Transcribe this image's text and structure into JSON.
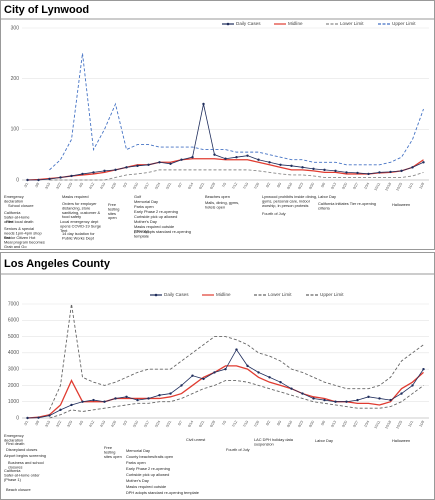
{
  "chart_data": [
    {
      "type": "line",
      "title": "City of Lynwood",
      "categories": [
        "3/1",
        "3/8",
        "3/15",
        "3/22",
        "3/29",
        "4/5",
        "4/12",
        "4/19",
        "4/26",
        "5/3",
        "5/10",
        "5/17",
        "5/24",
        "5/31",
        "6/7",
        "6/14",
        "6/21",
        "6/28",
        "7/5",
        "7/12",
        "7/19",
        "7/26",
        "8/2",
        "8/9",
        "8/16",
        "8/23",
        "8/30",
        "9/6",
        "9/13",
        "9/20",
        "9/27",
        "10/4",
        "10/11",
        "10/18",
        "10/25",
        "11/1",
        "11/8"
      ],
      "ylim": [
        0,
        300
      ],
      "yticks": [
        0,
        100,
        200,
        300
      ],
      "grid": true,
      "series": [
        {
          "name": "Daily Cases",
          "color": "#1f2d5c",
          "dash": "solid",
          "markers": true,
          "values": [
            0,
            0,
            2,
            5,
            8,
            12,
            15,
            18,
            20,
            25,
            28,
            30,
            35,
            32,
            40,
            45,
            150,
            50,
            42,
            45,
            48,
            40,
            35,
            30,
            28,
            25,
            22,
            20,
            18,
            15,
            14,
            12,
            15,
            16,
            18,
            25,
            35
          ]
        },
        {
          "name": "Midline",
          "color": "#e03c31",
          "dash": "solid",
          "markers": false,
          "values": [
            0,
            1,
            3,
            5,
            8,
            10,
            12,
            15,
            20,
            25,
            30,
            30,
            35,
            35,
            40,
            42,
            42,
            42,
            40,
            40,
            40,
            35,
            30,
            25,
            20,
            20,
            18,
            15,
            15,
            12,
            12,
            12,
            14,
            15,
            18,
            25,
            40
          ]
        },
        {
          "name": "Lower Limit",
          "color": "#8a8a8a",
          "dash": "dashed",
          "markers": false,
          "values": [
            null,
            null,
            0,
            0,
            0,
            0,
            0,
            0,
            5,
            10,
            12,
            15,
            20,
            20,
            20,
            20,
            20,
            20,
            20,
            20,
            20,
            18,
            15,
            12,
            10,
            10,
            8,
            5,
            5,
            5,
            5,
            5,
            5,
            5,
            5,
            8,
            15
          ]
        },
        {
          "name": "Upper Limit",
          "color": "#4472c4",
          "dash": "dashed",
          "markers": false,
          "values": [
            null,
            null,
            20,
            40,
            80,
            250,
            60,
            100,
            150,
            60,
            70,
            70,
            65,
            65,
            65,
            65,
            60,
            60,
            60,
            55,
            55,
            55,
            50,
            45,
            40,
            40,
            35,
            35,
            35,
            30,
            30,
            30,
            30,
            35,
            45,
            80,
            140
          ]
        }
      ],
      "annotations": [
        "Emergency declaration",
        "School closure",
        "California Safer-at-Home order",
        "First local death",
        "Seniors & special needs 1pm-4pm shop first",
        "Senior Citizen Hot Meal program becomes Grab and Go",
        "Masks required",
        "Orders for employer distancing, store sanitizing, customer & food safety",
        "Local emergency dept opens COVID-19 Surge Tent",
        "14 day isolation for Public Works Dept",
        "Free testing sites open",
        "Golf",
        "Memorial Day",
        "Parks open",
        "Early Phase 2 re-opening",
        "Curbside pick up allowed",
        "Mother's Day",
        "Masks required outside (County)",
        "DPH adopts standard re-opening template",
        "Beaches open",
        "Malls, dining, gyms, hotels open",
        "Lynwood prohibits inside dining, gyms, personal care, indoor worship, in person protests",
        "Fourth of July",
        "Labor Day",
        "California initiates Tier re-opening criteria",
        "Halloween"
      ]
    },
    {
      "type": "line",
      "title": "Los Angeles County",
      "categories": [
        "3/1",
        "3/8",
        "3/15",
        "3/22",
        "3/29",
        "4/5",
        "4/12",
        "4/19",
        "4/26",
        "5/3",
        "5/10",
        "5/17",
        "5/24",
        "5/31",
        "6/7",
        "6/14",
        "6/21",
        "6/28",
        "7/5",
        "7/12",
        "7/19",
        "7/26",
        "8/2",
        "8/9",
        "8/16",
        "8/23",
        "8/30",
        "9/6",
        "9/13",
        "9/20",
        "9/27",
        "10/4",
        "10/11",
        "10/18",
        "10/25",
        "11/1",
        "11/8"
      ],
      "ylim": [
        0,
        7000
      ],
      "yticks": [
        0,
        1000,
        2000,
        3000,
        4000,
        5000,
        6000,
        7000
      ],
      "grid": true,
      "series": [
        {
          "name": "Daily Cases",
          "color": "#1f2d5c",
          "dash": "solid",
          "markers": true,
          "values": [
            0,
            20,
            150,
            500,
            800,
            1000,
            1100,
            1000,
            1200,
            1300,
            1100,
            1200,
            1400,
            1500,
            2000,
            2600,
            2400,
            2800,
            3000,
            4200,
            3200,
            2800,
            2500,
            2200,
            1800,
            1500,
            1200,
            1100,
            1000,
            1000,
            1100,
            1300,
            1200,
            1100,
            1500,
            2000,
            3000
          ]
        },
        {
          "name": "Midline",
          "color": "#e03c31",
          "dash": "solid",
          "markers": false,
          "values": [
            0,
            50,
            200,
            800,
            2300,
            1000,
            1000,
            1000,
            1200,
            1200,
            1200,
            1200,
            1200,
            1300,
            1500,
            2000,
            2500,
            2800,
            3200,
            3200,
            3000,
            2500,
            2200,
            2000,
            1800,
            1500,
            1300,
            1200,
            1000,
            1000,
            900,
            900,
            800,
            1000,
            1800,
            2200,
            2800
          ]
        },
        {
          "name": "Lower Limit",
          "color": "#666666",
          "dash": "dashed",
          "markers": false,
          "values": [
            null,
            null,
            0,
            200,
            500,
            400,
            500,
            600,
            700,
            800,
            900,
            900,
            1000,
            1000,
            1200,
            1500,
            1800,
            2000,
            2300,
            2300,
            2200,
            2000,
            1800,
            1600,
            1400,
            1200,
            1000,
            900,
            800,
            700,
            600,
            600,
            600,
            700,
            1000,
            1500,
            2000
          ]
        },
        {
          "name": "Upper Limit",
          "color": "#666666",
          "dash": "dashed",
          "markers": false,
          "values": [
            null,
            null,
            500,
            2000,
            7000,
            2500,
            2200,
            2000,
            2200,
            2500,
            2800,
            3000,
            3000,
            3000,
            3500,
            4000,
            4500,
            5000,
            5000,
            4800,
            4500,
            4000,
            3800,
            3500,
            3000,
            2800,
            2500,
            2200,
            2000,
            1800,
            1800,
            1800,
            2000,
            2500,
            3500,
            4000,
            4500
          ]
        }
      ],
      "annotations": [
        "Emergency declaration",
        "First death",
        "Disneyland closes",
        "Airport begins screening",
        "Business and school closures",
        "California Safer-at-Home order (Phase 1)",
        "Beach closure",
        "Free testing sites open",
        "DPH adopts standard re-opening template",
        "Masks required outside",
        "Mother's Day",
        "Curbside pick up allowed",
        "Early Phase 2 re-opening",
        "Parks open",
        "County beaches/trails open",
        "Memorial Day",
        "Civil unrest",
        "Fourth of July",
        "LAC DPH holiday data suspension",
        "Labor Day",
        "Halloween"
      ]
    }
  ]
}
